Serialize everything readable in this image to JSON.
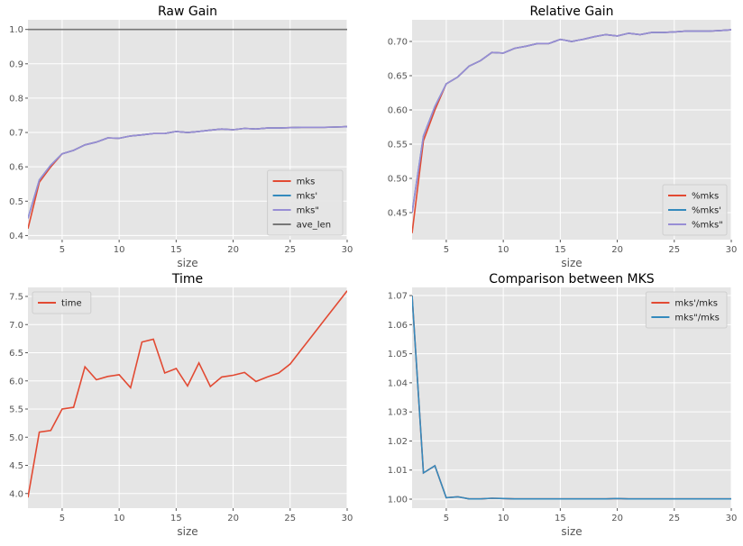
{
  "chart_data": [
    {
      "type": "line",
      "title": "Raw Gain",
      "xlabel": "size",
      "ylabel": "",
      "xlim": [
        2,
        30
      ],
      "ylim": [
        0.388,
        1.028
      ],
      "xticks": [
        5,
        10,
        15,
        20,
        25,
        30
      ],
      "yticks": [
        0.4,
        0.5,
        0.6,
        0.7,
        0.8,
        0.9,
        1.0
      ],
      "ytick_decimals": 1,
      "grid": true,
      "legend_position": "lower-right",
      "x": [
        2,
        3,
        4,
        5,
        6,
        7,
        8,
        9,
        10,
        11,
        12,
        13,
        14,
        15,
        16,
        17,
        18,
        19,
        20,
        21,
        22,
        23,
        24,
        25,
        26,
        27,
        28,
        29,
        30
      ],
      "series": [
        {
          "name": "mks",
          "color": "#E24A33",
          "values": [
            0.42,
            0.555,
            0.6,
            0.638,
            0.648,
            0.664,
            0.672,
            0.684,
            0.683,
            0.69,
            0.693,
            0.697,
            0.697,
            0.703,
            0.7,
            0.703,
            0.707,
            0.71,
            0.708,
            0.712,
            0.71,
            0.713,
            0.713,
            0.714,
            0.715,
            0.715,
            0.715,
            0.716,
            0.717
          ]
        },
        {
          "name": "mks'",
          "color": "#348ABD",
          "values": [
            0.45,
            0.562,
            0.605,
            0.638,
            0.648,
            0.664,
            0.672,
            0.684,
            0.683,
            0.69,
            0.693,
            0.697,
            0.697,
            0.703,
            0.7,
            0.703,
            0.707,
            0.71,
            0.708,
            0.712,
            0.71,
            0.713,
            0.713,
            0.714,
            0.715,
            0.715,
            0.715,
            0.716,
            0.717
          ]
        },
        {
          "name": "mks\"",
          "color": "#988ED5",
          "values": [
            0.45,
            0.562,
            0.605,
            0.638,
            0.648,
            0.664,
            0.672,
            0.684,
            0.683,
            0.69,
            0.693,
            0.697,
            0.697,
            0.703,
            0.7,
            0.703,
            0.707,
            0.71,
            0.708,
            0.712,
            0.71,
            0.713,
            0.713,
            0.714,
            0.715,
            0.715,
            0.715,
            0.716,
            0.717
          ]
        },
        {
          "name": "ave_len",
          "color": "#777777",
          "values": [
            1,
            1,
            1,
            1,
            1,
            1,
            1,
            1,
            1,
            1,
            1,
            1,
            1,
            1,
            1,
            1,
            1,
            1,
            1,
            1,
            1,
            1,
            1,
            1,
            1,
            1,
            1,
            1,
            1
          ]
        }
      ]
    },
    {
      "type": "line",
      "title": "Relative Gain",
      "xlabel": "size",
      "ylabel": "",
      "xlim": [
        2,
        30
      ],
      "ylim": [
        0.4105,
        0.7316
      ],
      "xticks": [
        5,
        10,
        15,
        20,
        25,
        30
      ],
      "yticks": [
        0.45,
        0.5,
        0.55,
        0.6,
        0.65,
        0.7
      ],
      "ytick_decimals": 2,
      "grid": true,
      "legend_position": "lower-right",
      "x": [
        2,
        3,
        4,
        5,
        6,
        7,
        8,
        9,
        10,
        11,
        12,
        13,
        14,
        15,
        16,
        17,
        18,
        19,
        20,
        21,
        22,
        23,
        24,
        25,
        26,
        27,
        28,
        29,
        30
      ],
      "series": [
        {
          "name": "%mks",
          "color": "#E24A33",
          "values": [
            0.42,
            0.555,
            0.6,
            0.638,
            0.648,
            0.664,
            0.672,
            0.684,
            0.683,
            0.69,
            0.693,
            0.697,
            0.697,
            0.703,
            0.7,
            0.703,
            0.707,
            0.71,
            0.708,
            0.712,
            0.71,
            0.713,
            0.713,
            0.714,
            0.715,
            0.715,
            0.715,
            0.716,
            0.717
          ]
        },
        {
          "name": "%mks'",
          "color": "#348ABD",
          "values": [
            0.45,
            0.562,
            0.605,
            0.638,
            0.648,
            0.664,
            0.672,
            0.684,
            0.683,
            0.69,
            0.693,
            0.697,
            0.697,
            0.703,
            0.7,
            0.703,
            0.707,
            0.71,
            0.708,
            0.712,
            0.71,
            0.713,
            0.713,
            0.714,
            0.715,
            0.715,
            0.715,
            0.716,
            0.717
          ]
        },
        {
          "name": "%mks\"",
          "color": "#988ED5",
          "values": [
            0.45,
            0.562,
            0.605,
            0.638,
            0.648,
            0.664,
            0.672,
            0.684,
            0.683,
            0.69,
            0.693,
            0.697,
            0.697,
            0.703,
            0.7,
            0.703,
            0.707,
            0.71,
            0.708,
            0.712,
            0.71,
            0.713,
            0.713,
            0.714,
            0.715,
            0.715,
            0.715,
            0.716,
            0.717
          ]
        }
      ]
    },
    {
      "type": "line",
      "title": "Time",
      "xlabel": "size",
      "ylabel": "",
      "xlim": [
        2,
        30
      ],
      "ylim": [
        3.74,
        7.66
      ],
      "xticks": [
        5,
        10,
        15,
        20,
        25,
        30
      ],
      "yticks": [
        4.0,
        4.5,
        5.0,
        5.5,
        6.0,
        6.5,
        7.0,
        7.5
      ],
      "ytick_decimals": 1,
      "grid": true,
      "legend_position": "upper-left",
      "x": [
        2,
        3,
        4,
        5,
        6,
        7,
        8,
        9,
        10,
        11,
        12,
        13,
        14,
        15,
        16,
        17,
        18,
        19,
        20,
        21,
        22,
        23,
        24,
        25,
        26,
        27,
        28,
        29,
        30
      ],
      "series": [
        {
          "name": "time",
          "color": "#E24A33",
          "values": [
            3.93,
            5.09,
            5.12,
            5.5,
            5.53,
            6.25,
            6.02,
            6.08,
            6.11,
            5.88,
            6.69,
            6.74,
            6.14,
            6.22,
            5.91,
            6.32,
            5.9,
            6.07,
            6.1,
            6.15,
            5.99,
            6.07,
            6.14,
            6.3,
            6.56,
            6.82,
            7.08,
            7.34,
            7.6
          ]
        }
      ]
    },
    {
      "type": "line",
      "title": "Comparison between MKS",
      "xlabel": "size",
      "ylabel": "",
      "xlim": [
        2,
        30
      ],
      "ylim": [
        0.9969,
        1.0728
      ],
      "xticks": [
        5,
        10,
        15,
        20,
        25,
        30
      ],
      "yticks": [
        1.0,
        1.01,
        1.02,
        1.03,
        1.04,
        1.05,
        1.06,
        1.07
      ],
      "ytick_decimals": 2,
      "grid": true,
      "legend_position": "upper-right",
      "x": [
        2,
        3,
        4,
        5,
        6,
        7,
        8,
        9,
        10,
        11,
        12,
        13,
        14,
        15,
        16,
        17,
        18,
        19,
        20,
        21,
        22,
        23,
        24,
        25,
        26,
        27,
        28,
        29,
        30
      ],
      "series": [
        {
          "name": "mks'/mks",
          "color": "#E24A33",
          "values": [
            1.07,
            1.009,
            1.0115,
            1.0005,
            1.0008,
            1.0001,
            1.0001,
            1.0003,
            1.0002,
            1.0001,
            1.0001,
            1.0001,
            1.0001,
            1.0001,
            1.0001,
            1.0001,
            1.0001,
            1.0001,
            1.0002,
            1.0001,
            1.0001,
            1.0001,
            1.0001,
            1.0001,
            1.0001,
            1.0001,
            1.0001,
            1.0001,
            1.0001
          ]
        },
        {
          "name": "mks\"/mks",
          "color": "#348ABD",
          "values": [
            1.07,
            1.009,
            1.0115,
            1.0005,
            1.0008,
            1.0001,
            1.0001,
            1.0003,
            1.0002,
            1.0001,
            1.0001,
            1.0001,
            1.0001,
            1.0001,
            1.0001,
            1.0001,
            1.0001,
            1.0001,
            1.0002,
            1.0001,
            1.0001,
            1.0001,
            1.0001,
            1.0001,
            1.0001,
            1.0001,
            1.0001,
            1.0001,
            1.0001
          ]
        }
      ]
    }
  ]
}
